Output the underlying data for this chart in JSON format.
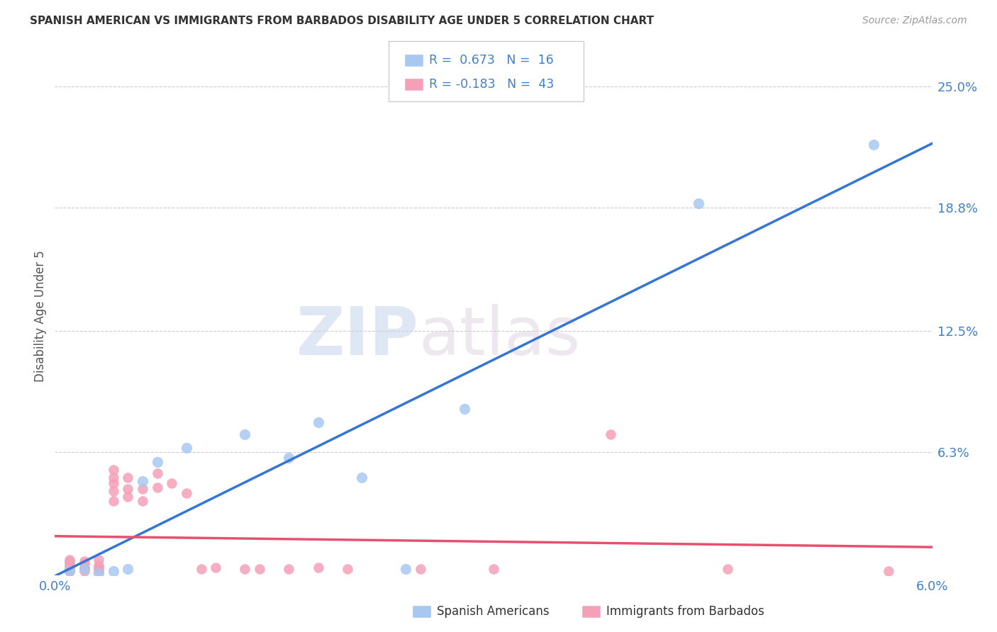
{
  "title": "SPANISH AMERICAN VS IMMIGRANTS FROM BARBADOS DISABILITY AGE UNDER 5 CORRELATION CHART",
  "source": "Source: ZipAtlas.com",
  "ylabel": "Disability Age Under 5",
  "yticks": [
    "25.0%",
    "18.8%",
    "12.5%",
    "6.3%"
  ],
  "ytick_vals": [
    0.25,
    0.188,
    0.125,
    0.063
  ],
  "xrange": [
    0.0,
    0.06
  ],
  "yrange": [
    0.0,
    0.265
  ],
  "blue_color": "#A8C8F0",
  "pink_color": "#F4A0B8",
  "blue_line_color": "#3575D5",
  "pink_line_color": "#E85070",
  "legend_blue_R": "0.673",
  "legend_blue_N": "16",
  "legend_pink_R": "-0.183",
  "legend_pink_N": "43",
  "watermark_zip": "ZIP",
  "watermark_atlas": "atlas",
  "blue_scatter_x": [
    0.001,
    0.002,
    0.003,
    0.004,
    0.005,
    0.006,
    0.007,
    0.009,
    0.013,
    0.016,
    0.018,
    0.021,
    0.024,
    0.028,
    0.044,
    0.056
  ],
  "blue_scatter_y": [
    0.002,
    0.003,
    0.001,
    0.002,
    0.003,
    0.048,
    0.058,
    0.065,
    0.072,
    0.06,
    0.078,
    0.05,
    0.003,
    0.085,
    0.19,
    0.22
  ],
  "pink_scatter_x": [
    0.001,
    0.001,
    0.001,
    0.001,
    0.001,
    0.001,
    0.001,
    0.002,
    0.002,
    0.002,
    0.002,
    0.002,
    0.003,
    0.003,
    0.003,
    0.003,
    0.003,
    0.004,
    0.004,
    0.004,
    0.004,
    0.004,
    0.005,
    0.005,
    0.005,
    0.006,
    0.006,
    0.007,
    0.007,
    0.008,
    0.009,
    0.01,
    0.011,
    0.013,
    0.014,
    0.016,
    0.018,
    0.02,
    0.025,
    0.03,
    0.038,
    0.046,
    0.057
  ],
  "pink_scatter_y": [
    0.002,
    0.003,
    0.004,
    0.005,
    0.006,
    0.007,
    0.008,
    0.002,
    0.003,
    0.004,
    0.006,
    0.007,
    0.002,
    0.003,
    0.004,
    0.005,
    0.008,
    0.038,
    0.043,
    0.047,
    0.05,
    0.054,
    0.04,
    0.044,
    0.05,
    0.038,
    0.044,
    0.045,
    0.052,
    0.047,
    0.042,
    0.003,
    0.004,
    0.003,
    0.003,
    0.003,
    0.004,
    0.003,
    0.003,
    0.003,
    0.072,
    0.003,
    0.002
  ]
}
